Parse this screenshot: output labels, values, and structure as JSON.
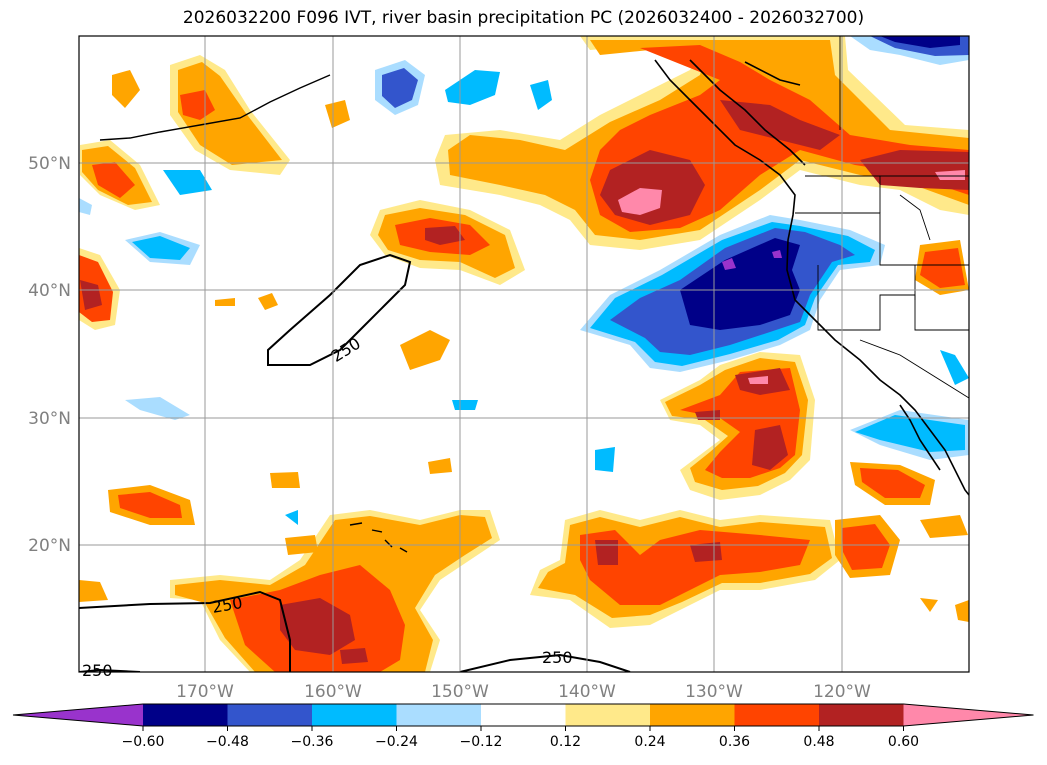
{
  "title": "2026032200 F096 IVT, river basin precipitation PC (2026032400 - 2026032700)",
  "lat_labels": [
    "50°N",
    "40°N",
    "30°N",
    "20°N"
  ],
  "lon_labels": [
    "170°W",
    "160°W",
    "150°W",
    "140°W",
    "130°W",
    "120°W"
  ],
  "contour_labels": [
    "250",
    "250",
    "250",
    "250"
  ],
  "colorbar": {
    "colors": [
      "#9933cc",
      "#000088",
      "#3355cc",
      "#00bbff",
      "#aaddff",
      "#ffffff",
      "#ffe98a",
      "#ffa500",
      "#ff4400",
      "#b22222",
      "#ff88aa"
    ],
    "labels": [
      "−0.60",
      "−0.48",
      "−0.36",
      "−0.24",
      "−0.12",
      "0.12",
      "0.24",
      "0.36",
      "0.48",
      "0.60"
    ]
  }
}
